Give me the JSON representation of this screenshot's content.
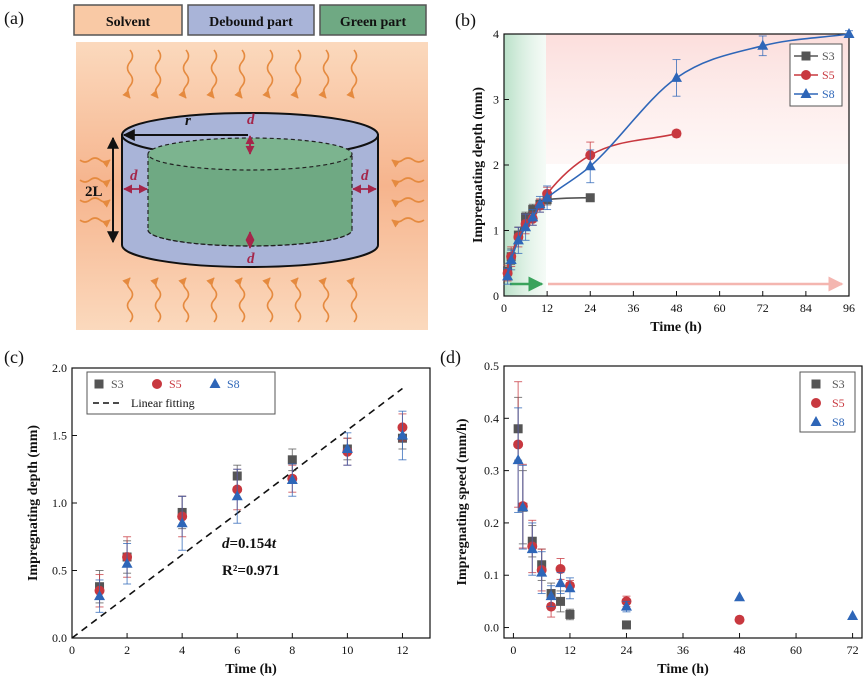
{
  "schematic": {
    "panel_label": "(a)",
    "legend": [
      "Solvent",
      "Debound part",
      "Green part"
    ],
    "labels": {
      "radius": "r",
      "thickness": "d",
      "height": "2L"
    },
    "colors": {
      "solvent": "#f9c9a5",
      "debound": "#a9b4d8",
      "green": "#6fa983",
      "arrow": "#e58a3f",
      "thickness": "#a4264a"
    }
  },
  "chart_data": [
    {
      "panel": "(b)",
      "type": "line",
      "xlabel": "Time (h)",
      "ylabel": "Impregnating depth (mm)",
      "xlim": [
        0,
        96
      ],
      "ylim": [
        0,
        4
      ],
      "xticks": [
        0,
        12,
        24,
        36,
        48,
        60,
        72,
        84,
        96
      ],
      "yticks": [
        0,
        1,
        2,
        3,
        4
      ],
      "legend_position": "top-right",
      "series": [
        {
          "name": "S3",
          "color": "#555555",
          "marker": "square",
          "x": [
            1,
            2,
            4,
            6,
            8,
            10,
            12,
            24
          ],
          "y": [
            0.38,
            0.6,
            0.93,
            1.2,
            1.32,
            1.4,
            1.47,
            1.5
          ],
          "err": [
            0.12,
            0.12,
            0.12,
            0.08,
            0.08,
            0.08,
            0.08,
            0.05
          ]
        },
        {
          "name": "S5",
          "color": "#c8383f",
          "marker": "circle",
          "x": [
            1,
            2,
            4,
            6,
            8,
            10,
            12,
            24,
            48
          ],
          "y": [
            0.35,
            0.6,
            0.9,
            1.1,
            1.18,
            1.38,
            1.56,
            2.15,
            2.48
          ],
          "err": [
            0.12,
            0.15,
            0.15,
            0.15,
            0.1,
            0.1,
            0.1,
            0.2,
            0.05
          ]
        },
        {
          "name": "S8",
          "color": "#2e66b8",
          "marker": "triangle",
          "x": [
            1,
            2,
            4,
            6,
            8,
            10,
            12,
            24,
            48,
            72,
            96
          ],
          "y": [
            0.3,
            0.55,
            0.85,
            1.05,
            1.2,
            1.4,
            1.5,
            1.98,
            3.33,
            3.82,
            4.0
          ],
          "err": [
            0.12,
            0.15,
            0.2,
            0.2,
            0.12,
            0.12,
            0.18,
            0.25,
            0.28,
            0.15,
            0.05
          ]
        }
      ]
    },
    {
      "panel": "(c)",
      "type": "scatter",
      "xlabel": "Time (h)",
      "ylabel": "Impregnating depth (mm)",
      "xlim": [
        0,
        13
      ],
      "ylim": [
        0,
        2.0
      ],
      "xticks": [
        0,
        2,
        4,
        6,
        8,
        10,
        12
      ],
      "yticks": [
        0.0,
        0.5,
        1.0,
        1.5,
        2.0
      ],
      "legend_position": "top-left",
      "fit": {
        "name": "Linear fitting",
        "slope": 0.154,
        "x_range": [
          0,
          12
        ]
      },
      "annotations": [
        "d=0.154t",
        "R²=0.971"
      ],
      "series": [
        {
          "name": "S3",
          "color": "#555555",
          "marker": "square",
          "x": [
            1,
            2,
            4,
            6,
            8,
            10,
            12
          ],
          "y": [
            0.38,
            0.6,
            0.93,
            1.2,
            1.32,
            1.4,
            1.48
          ],
          "err": [
            0.12,
            0.12,
            0.12,
            0.08,
            0.08,
            0.08,
            0.08
          ]
        },
        {
          "name": "S5",
          "color": "#c8383f",
          "marker": "circle",
          "x": [
            1,
            2,
            4,
            6,
            8,
            10,
            12
          ],
          "y": [
            0.35,
            0.6,
            0.9,
            1.1,
            1.18,
            1.38,
            1.56
          ],
          "err": [
            0.12,
            0.15,
            0.15,
            0.15,
            0.1,
            0.1,
            0.1
          ]
        },
        {
          "name": "S8",
          "color": "#2e66b8",
          "marker": "triangle",
          "x": [
            1,
            2,
            4,
            6,
            8,
            10,
            12
          ],
          "y": [
            0.31,
            0.55,
            0.85,
            1.05,
            1.17,
            1.4,
            1.5
          ],
          "err": [
            0.12,
            0.15,
            0.2,
            0.2,
            0.12,
            0.12,
            0.18
          ]
        }
      ]
    },
    {
      "panel": "(d)",
      "type": "scatter",
      "xlabel": "Time (h)",
      "ylabel": "Impregnating speed (mm/h)",
      "xlim": [
        -2,
        74
      ],
      "ylim": [
        -0.02,
        0.5
      ],
      "xticks": [
        0,
        12,
        24,
        36,
        48,
        60,
        72
      ],
      "yticks": [
        0.0,
        0.1,
        0.2,
        0.3,
        0.4,
        0.5
      ],
      "legend_position": "top-right",
      "series": [
        {
          "name": "S3",
          "color": "#555555",
          "marker": "square",
          "x": [
            1,
            2,
            4,
            6,
            8,
            10,
            12,
            24
          ],
          "y": [
            0.38,
            0.23,
            0.165,
            0.12,
            0.065,
            0.05,
            0.025,
            0.005
          ],
          "err": [
            0.06,
            0.07,
            0.03,
            0.03,
            0.02,
            0.02,
            0.01,
            0
          ]
        },
        {
          "name": "S5",
          "color": "#c8383f",
          "marker": "circle",
          "x": [
            1,
            2,
            4,
            6,
            8,
            10,
            12,
            24,
            48
          ],
          "y": [
            0.35,
            0.232,
            0.155,
            0.11,
            0.04,
            0.112,
            0.08,
            0.05,
            0.015
          ],
          "err": [
            0.12,
            0.08,
            0.05,
            0.04,
            0.02,
            0.02,
            0.01,
            0.01,
            0
          ]
        },
        {
          "name": "S8",
          "color": "#2e66b8",
          "marker": "triangle",
          "x": [
            1,
            2,
            4,
            6,
            8,
            10,
            12,
            24,
            48,
            72
          ],
          "y": [
            0.32,
            0.23,
            0.15,
            0.105,
            0.06,
            0.085,
            0.075,
            0.04,
            0.058,
            0.022
          ],
          "err": [
            0.1,
            0.08,
            0.05,
            0.04,
            0.02,
            0.02,
            0.02,
            0.01,
            0,
            0
          ]
        }
      ]
    }
  ]
}
